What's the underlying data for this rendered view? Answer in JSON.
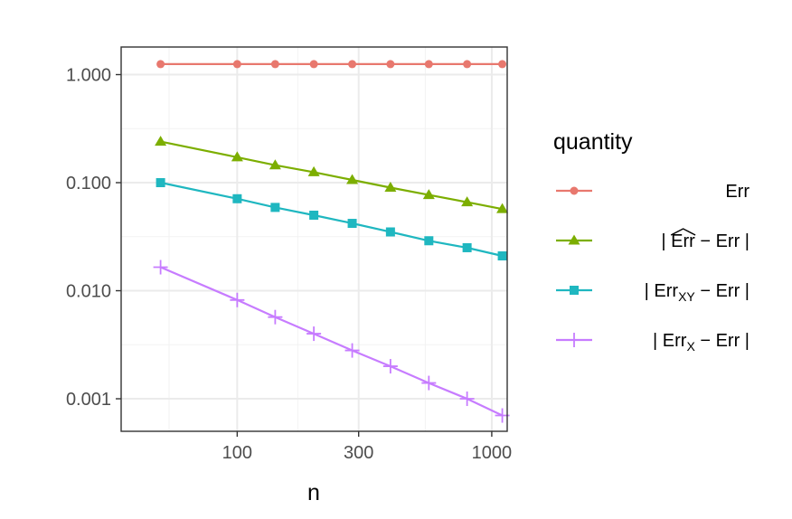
{
  "chart_data": {
    "type": "line",
    "xlabel": "n",
    "ylabel": "",
    "x_scale": "log",
    "y_scale": "log",
    "xlim": [
      35,
      1150
    ],
    "ylim": [
      0.0005,
      1.8
    ],
    "x_ticks": [
      {
        "value": 100,
        "label": "100"
      },
      {
        "value": 300,
        "label": "300"
      },
      {
        "value": 1000,
        "label": "1000"
      }
    ],
    "y_ticks": [
      {
        "value": 0.001,
        "label": "0.001"
      },
      {
        "value": 0.01,
        "label": "0.010"
      },
      {
        "value": 0.1,
        "label": "0.100"
      },
      {
        "value": 1,
        "label": "1.000"
      }
    ],
    "x_minor_gridlines": [
      54,
      173,
      548
    ],
    "y_minor_gridlines": [
      0.00316,
      0.0316,
      0.316
    ],
    "grid": true,
    "legend": {
      "title": "quantity",
      "position": "right"
    },
    "x": [
      50,
      100,
      141,
      200,
      283,
      400,
      566,
      800,
      1100
    ],
    "series": [
      {
        "name": "Err",
        "legend_text": "Err",
        "color": "#e8786e",
        "marker": "circle",
        "values": [
          1.25,
          1.25,
          1.25,
          1.25,
          1.25,
          1.25,
          1.25,
          1.25,
          1.25
        ]
      },
      {
        "name": "| \\widehat{Err} − Err |",
        "legend_pre": "| ",
        "legend_hat": "Err",
        "legend_post": " − Err |",
        "color": "#7cae00",
        "marker": "triangle",
        "values": [
          0.24,
          0.172,
          0.145,
          0.125,
          0.106,
          0.09,
          0.077,
          0.066,
          0.057
        ]
      },
      {
        "name": "| Err_XY − Err |",
        "legend_pre": "| Err",
        "legend_sub": "XY",
        "legend_post": " − Err |",
        "color": "#1fb7c0",
        "marker": "square",
        "values": [
          0.1,
          0.071,
          0.059,
          0.05,
          0.042,
          0.035,
          0.029,
          0.025,
          0.021
        ]
      },
      {
        "name": "| Err_X − Err |",
        "legend_pre": "| Err",
        "legend_sub": "X",
        "legend_post": " − Err |",
        "color": "#c77cff",
        "marker": "plus",
        "values": [
          0.0165,
          0.0082,
          0.0057,
          0.004,
          0.0028,
          0.002,
          0.0014,
          0.001,
          0.0007
        ]
      }
    ]
  }
}
